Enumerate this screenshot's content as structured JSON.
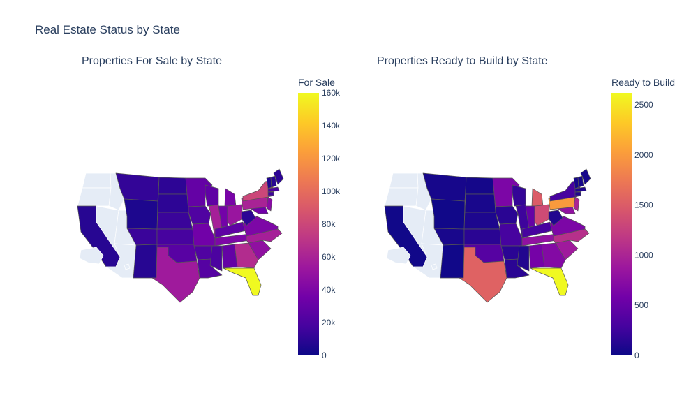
{
  "title": "Real Estate Status by State",
  "colors": {
    "scale": [
      "#0d0887",
      "#46039f",
      "#7201a8",
      "#9c179e",
      "#bd3786",
      "#d8576b",
      "#ed7953",
      "#fb9f3a",
      "#fdca26",
      "#f0f921"
    ],
    "nodata": "#e5ecf6",
    "border": "#555555",
    "text": "#2a3f5f"
  },
  "chart_data": [
    {
      "type": "choropleth",
      "title": "Properties For Sale by State",
      "colorbar_title": "For Sale",
      "range": [
        0,
        160000
      ],
      "ticks": [
        0,
        20000,
        40000,
        60000,
        80000,
        100000,
        120000,
        140000,
        160000
      ],
      "tick_labels": [
        "0",
        "20k",
        "40k",
        "60k",
        "80k",
        "100k",
        "120k",
        "140k",
        "160k"
      ],
      "values": {
        "WA": null,
        "OR": null,
        "ID": null,
        "NV": null,
        "UT": null,
        "AZ": null,
        "AK": null,
        "HI": null,
        "CA": 8000,
        "MT": 12000,
        "WY": 5000,
        "CO": 14000,
        "NM": 8000,
        "ND": 10000,
        "SD": 10000,
        "NE": 14000,
        "KS": 18000,
        "OK": 25000,
        "TX": 55000,
        "MN": 30000,
        "IA": 22000,
        "MO": 35000,
        "AR": 22000,
        "LA": 24000,
        "WI": 28000,
        "IL": 58000,
        "MS": 20000,
        "MI": 38000,
        "IN": 36000,
        "KY": 28000,
        "TN": 40000,
        "AL": 30000,
        "OH": 52000,
        "GA": 65000,
        "FL": 160000,
        "SC": 48000,
        "NC": 58000,
        "VA": 40000,
        "WV": 10000,
        "PA": 60000,
        "NY": 80000,
        "VT": 6000,
        "NH": 8000,
        "ME": 10000,
        "MA": 20000,
        "CT": 16000,
        "NJ": 45000,
        "MD": 35000
      }
    },
    {
      "type": "choropleth",
      "title": "Properties Ready to Build by State",
      "colorbar_title": "Ready to Build",
      "range": [
        0,
        2620
      ],
      "ticks": [
        0,
        500,
        1000,
        1500,
        2000,
        2500
      ],
      "tick_labels": [
        "0",
        "500",
        "1000",
        "1500",
        "2000",
        "2500"
      ],
      "values": {
        "WA": null,
        "OR": null,
        "ID": null,
        "NV": null,
        "UT": null,
        "AZ": null,
        "AK": null,
        "HI": null,
        "CA": 20,
        "MT": 50,
        "WY": 20,
        "CO": 60,
        "NM": 20,
        "ND": 40,
        "SD": 60,
        "NE": 80,
        "KS": 150,
        "OK": 400,
        "TX": 1550,
        "MN": 650,
        "IA": 150,
        "MO": 300,
        "AR": 150,
        "LA": 150,
        "WI": 200,
        "IL": 250,
        "MS": 100,
        "MI": 1500,
        "IN": 500,
        "KY": 300,
        "TN": 800,
        "AL": 600,
        "OH": 1350,
        "GA": 700,
        "FL": 2620,
        "SC": 900,
        "NC": 1100,
        "VA": 650,
        "WV": 100,
        "PA": 2000,
        "NY": 300,
        "VT": 50,
        "NH": 50,
        "ME": 50,
        "MA": 100,
        "CT": 100,
        "NJ": 1000,
        "MD": 800
      }
    }
  ]
}
